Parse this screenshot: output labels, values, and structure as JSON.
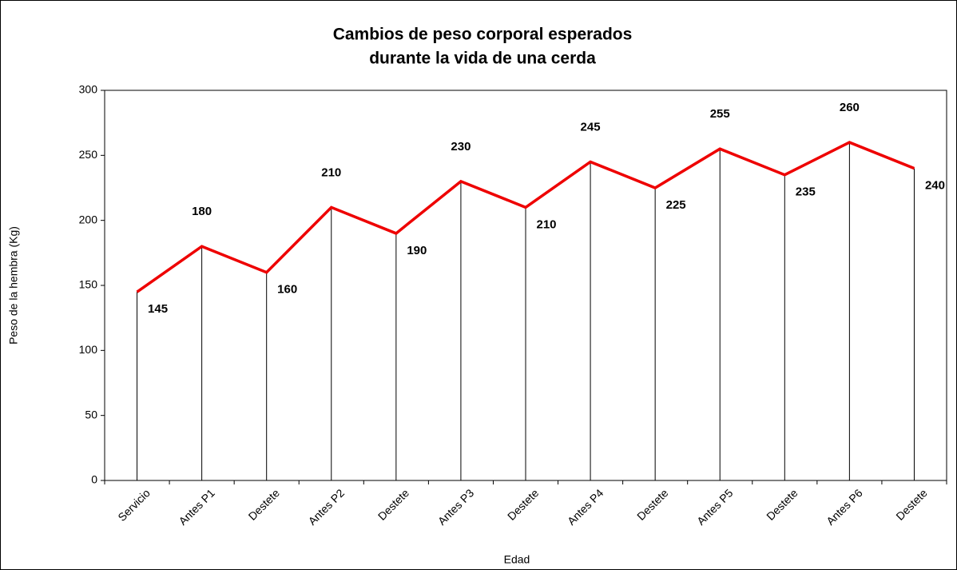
{
  "chart_data": {
    "type": "line",
    "title": [
      "Cambios de peso corporal esperados",
      "durante la vida de una cerda"
    ],
    "x_label": "Edad",
    "y_label": "Peso de la hembra (Kg)",
    "categories": [
      "Servicio",
      "Antes P1",
      "Destete",
      "Antes P2",
      "Destete",
      "Antes P3",
      "Destete",
      "Antes P4",
      "Destete",
      "Antes P5",
      "Destete",
      "Antes P6",
      "Destete"
    ],
    "values": [
      145,
      180,
      160,
      210,
      190,
      230,
      210,
      245,
      225,
      255,
      235,
      260,
      240
    ],
    "color": "#ee0000",
    "ylim": [
      0,
      300
    ],
    "yticks": [
      0,
      50,
      100,
      150,
      200,
      250,
      300
    ],
    "drop_lines": true
  }
}
